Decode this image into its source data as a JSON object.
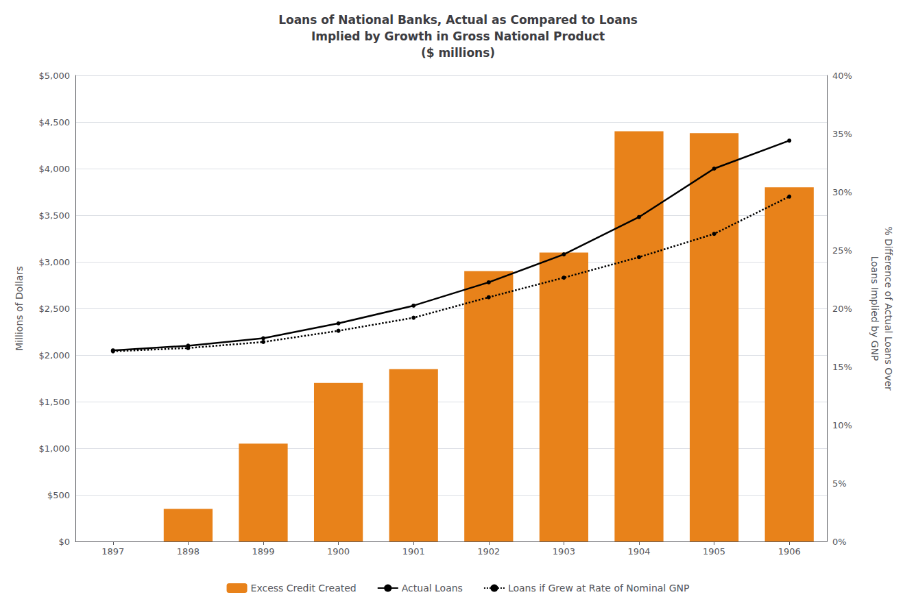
{
  "chart_data": {
    "type": "bar",
    "title": "Loans of National Banks, Actual as Compared to Loans\nImplied by Growth in Gross National Product\n($ millions)",
    "ylabel": "Millions of Dollars",
    "y2label": "% Difference of Actual Loans Over\nLoans Implied by GNP",
    "categories": [
      "1897",
      "1898",
      "1899",
      "1900",
      "1901",
      "1902",
      "1903",
      "1904",
      "1905",
      "1906"
    ],
    "series": [
      {
        "name": "Excess Credit Created",
        "type": "bar",
        "color": "#E8821A",
        "values": [
          0,
          350,
          1050,
          1700,
          1850,
          2900,
          3100,
          4400,
          4380,
          3800
        ]
      },
      {
        "name": "Actual Loans",
        "type": "line",
        "color": "#000000",
        "line_style": "solid",
        "marker": "circle",
        "values": [
          2050,
          2100,
          2180,
          2340,
          2530,
          2780,
          3080,
          3480,
          4000,
          4300
        ]
      },
      {
        "name": "Loans if Grew at Rate of Nominal GNP",
        "type": "line",
        "color": "#000000",
        "line_style": "dotted",
        "marker": "circle",
        "values": [
          2040,
          2075,
          2140,
          2260,
          2400,
          2620,
          2830,
          3050,
          3300,
          3700
        ]
      }
    ],
    "ylim": [
      0,
      5000
    ],
    "yticks": [
      {
        "value": 0,
        "label": "$0"
      },
      {
        "value": 500,
        "label": "$500"
      },
      {
        "value": 1000,
        "label": "$1,000"
      },
      {
        "value": 1500,
        "label": "$1,500"
      },
      {
        "value": 2000,
        "label": "$2,000"
      },
      {
        "value": 2500,
        "label": "$2,500"
      },
      {
        "value": 3000,
        "label": "$3,000"
      },
      {
        "value": 3500,
        "label": "$3,500"
      },
      {
        "value": 4000,
        "label": "$4,000"
      },
      {
        "value": 4500,
        "label": "$4,500"
      },
      {
        "value": 5000,
        "label": "$5,000"
      }
    ],
    "y2lim": [
      0,
      40
    ],
    "y2ticks": [
      {
        "value": 0,
        "label": "0%"
      },
      {
        "value": 5,
        "label": "5%"
      },
      {
        "value": 10,
        "label": "10%"
      },
      {
        "value": 15,
        "label": "15%"
      },
      {
        "value": 20,
        "label": "20%"
      },
      {
        "value": 25,
        "label": "25%"
      },
      {
        "value": 30,
        "label": "30%"
      },
      {
        "value": 35,
        "label": "35%"
      },
      {
        "value": 40,
        "label": "40%"
      }
    ],
    "grid": true,
    "legend": "bottom"
  }
}
